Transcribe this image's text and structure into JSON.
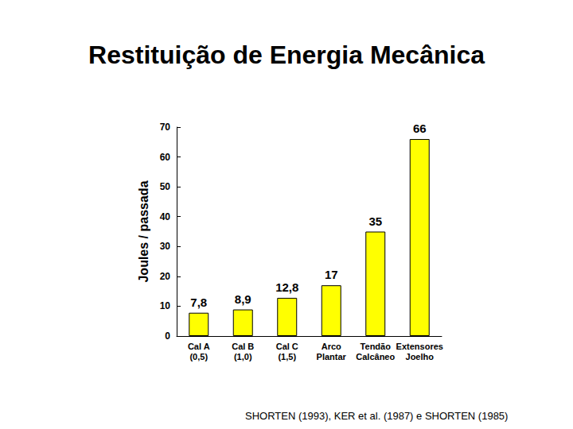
{
  "chart_data": {
    "type": "bar",
    "title": "Restituição de Energia Mecânica",
    "y_label": "Joules / passada",
    "categories": [
      "Cal A\n(0,5)",
      "Cal B\n(1,0)",
      "Cal C\n(1,5)",
      "Arco\nPlantar",
      "Tendão\nCalcâneo",
      "Extensores\nJoelho"
    ],
    "values": [
      7.8,
      8.9,
      12.8,
      17,
      35,
      66
    ],
    "value_labels": [
      "7,8",
      "8,9",
      "12,8",
      "17",
      "35",
      "66"
    ],
    "color": "#ffff00",
    "ylim": [
      0,
      70
    ],
    "yticks": [
      0,
      10,
      20,
      30,
      40,
      50,
      60,
      70
    ],
    "grid": false,
    "data_labels": true,
    "annotations": [
      "SHORTEN (1993), KER et al. (1987) e SHORTEN (1985)"
    ]
  }
}
